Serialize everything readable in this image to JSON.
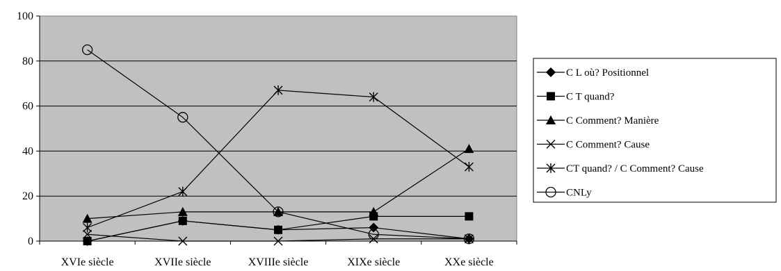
{
  "chart_data": {
    "type": "line",
    "title": "",
    "xlabel": "",
    "ylabel": "",
    "ylim": [
      0,
      100
    ],
    "yticks": [
      0,
      20,
      40,
      60,
      80,
      100
    ],
    "grid": "horizontal",
    "legend_position": "right",
    "plot_background": "#c0c0c0",
    "categories": [
      "XVIe siècle",
      "XVIIe siècle",
      "XVIIIe siècle",
      "XIXe siècle",
      "XXe siècle"
    ],
    "series": [
      {
        "name": "C L où? Positionnel",
        "marker": "diamond",
        "values": [
          0,
          9,
          5,
          6,
          1
        ]
      },
      {
        "name": "C T quand?",
        "marker": "square",
        "values": [
          0,
          9,
          5,
          11,
          11
        ]
      },
      {
        "name": "C Comment? Manière",
        "marker": "triangle",
        "values": [
          10,
          13,
          13,
          13,
          41
        ]
      },
      {
        "name": "C Comment? Cause",
        "marker": "x",
        "values": [
          3,
          0,
          0,
          1,
          1
        ]
      },
      {
        "name": "CT quand? / C Comment? Cause",
        "marker": "asterisk",
        "values": [
          6,
          22,
          67,
          64,
          33
        ]
      },
      {
        "name": "CNLy",
        "marker": "circle",
        "values": [
          85,
          55,
          13,
          3,
          1
        ]
      }
    ]
  }
}
